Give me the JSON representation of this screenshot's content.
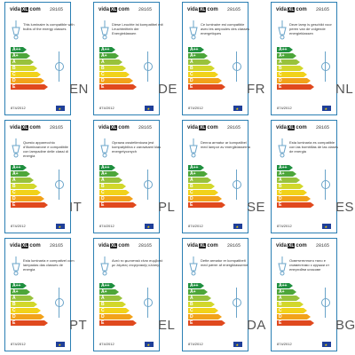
{
  "brand": {
    "logo_left": "vida",
    "logo_right": "com",
    "logo_mid": "XL",
    "model_code": "28165",
    "regulation": "874/2012"
  },
  "energy_classes": [
    {
      "letter": "A++",
      "color": "#1f8f3f"
    },
    {
      "letter": "A+",
      "color": "#4da63a"
    },
    {
      "letter": "A",
      "color": "#98c23c"
    },
    {
      "letter": "B",
      "color": "#d2d72b"
    },
    {
      "letter": "C",
      "color": "#f1d21a"
    },
    {
      "letter": "D",
      "color": "#f2a21a"
    },
    {
      "letter": "E",
      "color": "#e0491e"
    }
  ],
  "labels": [
    {
      "lang": "EN",
      "text": "This luminaire is compatible with bulbs of the energy classes"
    },
    {
      "lang": "DE",
      "text": "Diese Leuchte ist kompatibel mit Leuchtmitteln der Energieklassen"
    },
    {
      "lang": "FR",
      "text": "Ce luminaire est compatible avec les ampoules des classes energetiques"
    },
    {
      "lang": "NL",
      "text": "Deze lamp is geschikt voor peren van de volgende energieklassen"
    },
    {
      "lang": "IT",
      "text": "Questo apparecchio d'illuminazione e compatibile con lampadine delle classi di energia"
    },
    {
      "lang": "PL",
      "text": "Oprawa oswietleniowa jest kompatybilna z zarowkami klas energetycznych"
    },
    {
      "lang": "SE",
      "text": "Denna armatur ar kompatibel med lampor av energiklasserna"
    },
    {
      "lang": "ES",
      "text": "Esta luminaria es compatible con las bombillas de las clases de energia"
    },
    {
      "lang": "PT",
      "text": "Esta luminaria e compativel com lampadas das classes de energia"
    },
    {
      "lang": "EL",
      "text": "Αυτό το φωτιστικό είναι συμβατό με λάμπες ενεργειακής κλάσης"
    },
    {
      "lang": "DA",
      "text": "Dette armatur er kompatibelt med pærer af energiklasserne"
    },
    {
      "lang": "BG",
      "text": "Осветителното тяло е съвместимо с крушки от енергийни класове"
    }
  ]
}
